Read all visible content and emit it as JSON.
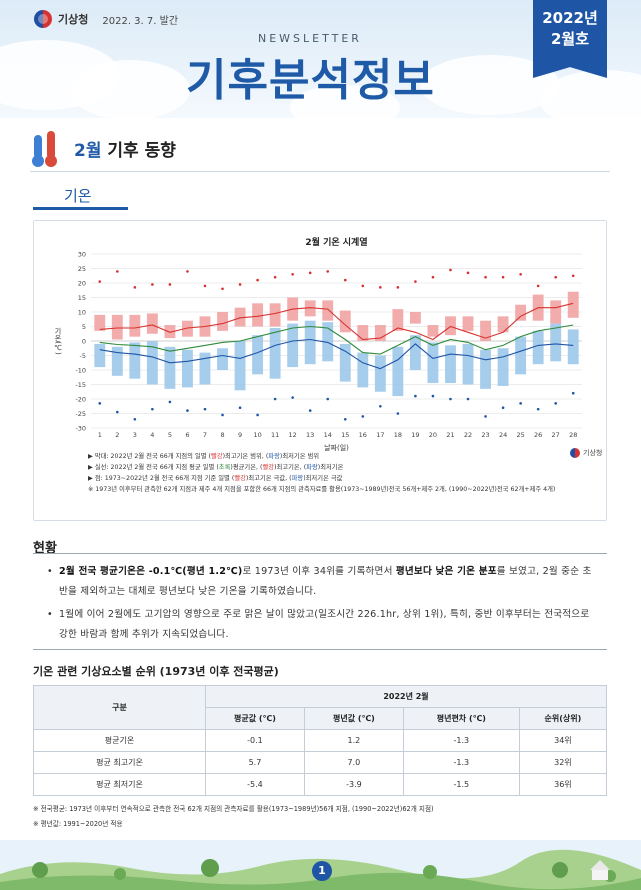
{
  "header": {
    "agency": "기상청",
    "issue_date": "2022. 3. 7. 발간",
    "newsletter": "NEWSLETTER",
    "title": "기후분석정보",
    "issue_year": "2022년",
    "issue_month": "2월호"
  },
  "section": {
    "month": "2월",
    "title": "기후 동향"
  },
  "tab": {
    "label": "기온"
  },
  "chart_data": {
    "type": "bar",
    "title": "2월 기온 시계열",
    "ylabel": "기온(℃)",
    "xlabel": "날짜(일)",
    "ylim": [
      -30,
      30
    ],
    "yticks": [
      30,
      25,
      20,
      15,
      10,
      5,
      0,
      -5,
      -10,
      -15,
      -20,
      -25,
      -30
    ],
    "x": [
      1,
      2,
      3,
      4,
      5,
      6,
      7,
      8,
      9,
      10,
      11,
      12,
      13,
      14,
      15,
      16,
      17,
      18,
      19,
      20,
      21,
      22,
      23,
      24,
      25,
      26,
      27,
      28
    ],
    "series": [
      {
        "name": "최고기온 범위 (막대, 빨강)",
        "color": "#f2a3a3",
        "low": [
          3.5,
          0.5,
          1.5,
          2.5,
          1,
          1.5,
          1.5,
          3.5,
          5,
          5,
          5,
          7,
          8.5,
          7,
          3,
          0,
          0,
          3.5,
          6,
          1.5,
          2,
          3.5,
          0,
          3,
          7,
          7,
          6,
          8
        ],
        "high": [
          9,
          9,
          9,
          9.5,
          5.5,
          7,
          8.5,
          10,
          11.5,
          13,
          13,
          15,
          14,
          14,
          10.5,
          5.5,
          5.5,
          11,
          10,
          5.5,
          8.5,
          8.5,
          7,
          8.5,
          12.5,
          16,
          14,
          17
        ]
      },
      {
        "name": "최저기온 범위 (막대, 파랑)",
        "color": "#9cc8ea",
        "low": [
          -9,
          -12,
          -13,
          -15,
          -16.5,
          -16,
          -15,
          -10,
          -17,
          -11.5,
          -13,
          -9,
          -8,
          -7,
          -14,
          -16,
          -17.5,
          -19,
          -10,
          -14.5,
          -14.5,
          -15,
          -16.5,
          -15.5,
          -11.5,
          -8,
          -7,
          -8
        ],
        "high": [
          -1,
          -2,
          -0.5,
          0,
          -2,
          -3,
          -4,
          -2.5,
          0,
          2,
          4.5,
          6,
          7,
          6.5,
          -1,
          -4,
          -5,
          -2,
          2,
          -0.5,
          -1.5,
          -1,
          -3,
          -2.5,
          1.5,
          3.5,
          6,
          4
        ]
      },
      {
        "name": "평균기온",
        "color": "#2e8b3a",
        "values": [
          -0.5,
          -1.2,
          -1.5,
          -2,
          -3.5,
          -2.5,
          -1.5,
          -0.5,
          0,
          1.5,
          3,
          4.5,
          5,
          4.5,
          0.5,
          -4,
          -4.5,
          -1.5,
          1.5,
          -1.5,
          0.5,
          -0.5,
          -3,
          -1.5,
          1.5,
          3.5,
          4.5,
          5.5
        ]
      },
      {
        "name": "최고기온",
        "color": "#d6322f",
        "values": [
          4,
          4.5,
          4.5,
          5.5,
          3,
          4.5,
          5,
          6,
          8,
          8.5,
          9.5,
          11,
          11.5,
          11,
          5.5,
          0.5,
          1,
          4.5,
          3,
          0.5,
          5,
          3,
          1,
          3,
          8.5,
          11.5,
          11.5,
          13
        ]
      },
      {
        "name": "최저기온",
        "color": "#1f55a5",
        "values": [
          -3,
          -4,
          -4.5,
          -5.5,
          -7.5,
          -7,
          -6,
          -5,
          -6,
          -4,
          -1.5,
          0,
          0.5,
          -0.5,
          -3.5,
          -7.5,
          -9.5,
          -6.5,
          -1,
          -6,
          -4.5,
          -5,
          -6.5,
          -5.5,
          -3.5,
          -1.5,
          -1,
          -1.5
        ]
      },
      {
        "name": "최고기온 극값",
        "color": "#d6322f",
        "values": [
          20.5,
          24,
          18.5,
          19.5,
          19.5,
          24,
          19,
          18,
          19.5,
          21,
          22,
          23,
          23.5,
          24,
          21,
          19,
          18.5,
          18.5,
          20.5,
          22,
          24.5,
          23.5,
          22,
          22,
          23,
          19,
          22,
          22.5
        ]
      },
      {
        "name": "최저기온 극값",
        "color": "#1f55a5",
        "values": [
          -21.5,
          -24.5,
          -27,
          -23.5,
          -21,
          -24,
          -23.5,
          -25.5,
          -23,
          -25.5,
          -20,
          -19.5,
          -24,
          -20,
          -27,
          -26,
          -22.5,
          -25,
          -19,
          -19,
          -20,
          -20,
          -26,
          -23,
          -21.5,
          -23.5,
          -21.5,
          -18
        ]
      }
    ]
  },
  "chart_notes": {
    "line1_a": "▶ 막대: 2022년 2월 전국 66개 지점의 일별 (",
    "line1_red": "빨강",
    "line1_b": ")최고기온 범위, (",
    "line1_blue": "파랑",
    "line1_c": ")최저기온 범위",
    "line2_a": "▶ 실선: 2022년 2월 전국 66개 지점 평균 일별 (",
    "line2_green": "초록",
    "line2_b": ")평균기온, (",
    "line2_red": "빨강",
    "line2_c": ")최고기온, (",
    "line2_blue": "파랑",
    "line2_d": ")최저기온",
    "line3_a": "▶ 점: 1973~2022년 2월 전국 66개 지점 기준 일별 (",
    "line3_red": "빨강",
    "line3_b": ")최고기온 극값, (",
    "line3_blue": "파랑",
    "line3_c": ")최저기온 극값",
    "line4": "※ 1973년 이후부터 관측한 62개 지점과 제주 4개 지점을 포함한 66개 지점의 관측자료를 활용(1973~1989년)전국 56개+제주 2개, (1990~2022년)전국 62개+제주 4개)",
    "kma": "기상청"
  },
  "status": {
    "title": "현황",
    "b1_bold": "2월 전국 평균기온은 -0.1℃(평년 1.2℃)",
    "b1_mid": "로 1973년 이후 34위를 기록하면서 ",
    "b1_bold2": "평년보다 낮은 기온 분포",
    "b1_end": "를 보였고, 2월 중순 초반을 제외하고는 대체로 평년보다 낮은 기온을 기록하였습니다.",
    "b2": "1월에 이어 2월에도 고기압의 영향으로 주로 맑은 날이 많았고(일조시간 226.1hr, 상위 1위), 특히, 중반 이후부터는 전국적으로 강한 바람과 함께 추위가 지속되었습니다."
  },
  "table": {
    "title": "기온 관련 기상요소별 순위 (1973년 이후 전국평균)",
    "group_header": "구분",
    "year_header": "2022년 2월",
    "columns": [
      "평균값 (℃)",
      "평년값 (℃)",
      "평년편차 (℃)",
      "순위(상위)"
    ],
    "rows": [
      {
        "label": "평균기온",
        "cells": [
          "-0.1",
          "1.2",
          "-1.3",
          "34위"
        ]
      },
      {
        "label": "평균 최고기온",
        "cells": [
          "5.7",
          "7.0",
          "-1.3",
          "32위"
        ]
      },
      {
        "label": "평균 최저기온",
        "cells": [
          "-5.4",
          "-3.9",
          "-1.5",
          "36위"
        ]
      }
    ],
    "foot1": "※ 전국평균: 1973년 이후부터 연속적으로 관측한 전국 62개 지점의 관측자료를 활용(1973~1989년)56개 지점, (1990~2022년)62개 지점)",
    "foot2": "※ 평년값: 1991~2020년 적용"
  },
  "page": {
    "number": "1"
  }
}
